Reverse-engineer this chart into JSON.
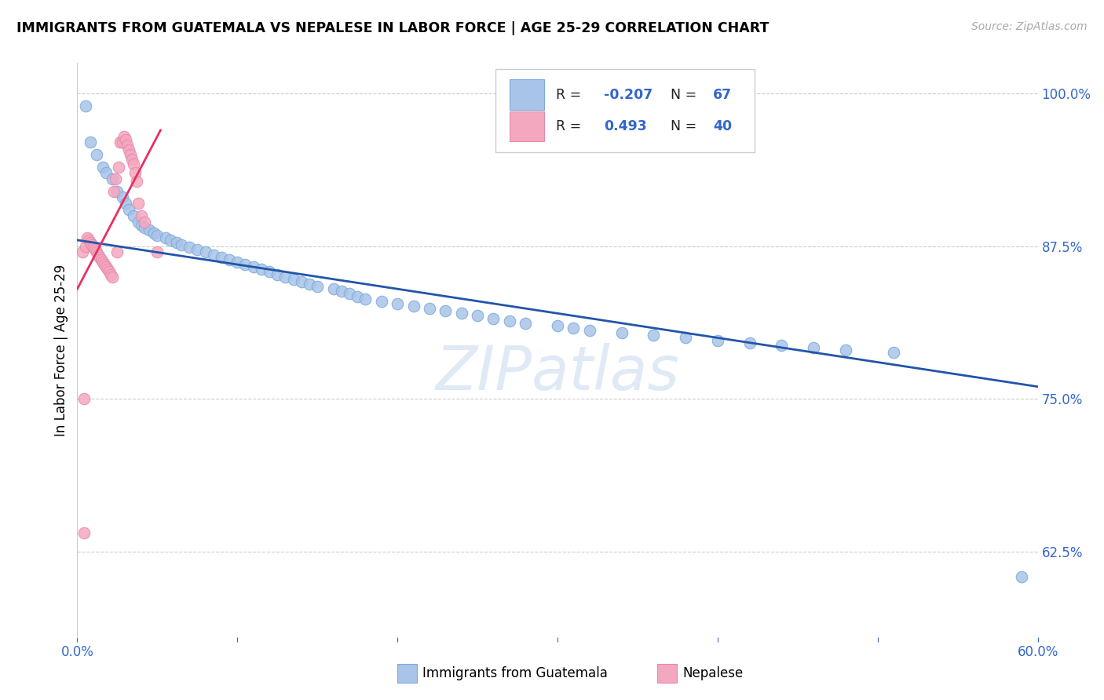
{
  "title": "IMMIGRANTS FROM GUATEMALA VS NEPALESE IN LABOR FORCE | AGE 25-29 CORRELATION CHART",
  "source": "Source: ZipAtlas.com",
  "ylabel": "In Labor Force | Age 25-29",
  "x_min": 0.0,
  "x_max": 0.6,
  "y_min": 0.555,
  "y_max": 1.025,
  "y_ticks_right": [
    0.625,
    0.75,
    0.875,
    1.0
  ],
  "y_tick_labels_right": [
    "62.5%",
    "75.0%",
    "87.5%",
    "100.0%"
  ],
  "blue_color": "#a8c4e8",
  "pink_color": "#f4a8bf",
  "blue_line_color": "#2255aa",
  "pink_line_color": "#e83060",
  "watermark": "ZIPatlas",
  "blue_scatter_x": [
    0.005,
    0.008,
    0.012,
    0.016,
    0.018,
    0.022,
    0.025,
    0.028,
    0.03,
    0.032,
    0.035,
    0.038,
    0.04,
    0.042,
    0.045,
    0.048,
    0.05,
    0.055,
    0.058,
    0.062,
    0.065,
    0.07,
    0.075,
    0.08,
    0.085,
    0.09,
    0.095,
    0.1,
    0.105,
    0.11,
    0.115,
    0.12,
    0.125,
    0.13,
    0.135,
    0.14,
    0.145,
    0.15,
    0.16,
    0.165,
    0.17,
    0.175,
    0.18,
    0.19,
    0.2,
    0.21,
    0.22,
    0.23,
    0.24,
    0.25,
    0.26,
    0.27,
    0.28,
    0.3,
    0.31,
    0.32,
    0.34,
    0.36,
    0.38,
    0.4,
    0.42,
    0.44,
    0.46,
    0.48,
    0.51,
    0.59
  ],
  "blue_scatter_y": [
    0.99,
    0.96,
    0.95,
    0.94,
    0.935,
    0.93,
    0.92,
    0.915,
    0.91,
    0.905,
    0.9,
    0.895,
    0.892,
    0.89,
    0.888,
    0.886,
    0.884,
    0.882,
    0.88,
    0.878,
    0.876,
    0.874,
    0.872,
    0.87,
    0.868,
    0.866,
    0.864,
    0.862,
    0.86,
    0.858,
    0.856,
    0.854,
    0.852,
    0.85,
    0.848,
    0.846,
    0.844,
    0.842,
    0.84,
    0.838,
    0.836,
    0.834,
    0.832,
    0.83,
    0.828,
    0.826,
    0.824,
    0.822,
    0.82,
    0.818,
    0.816,
    0.814,
    0.812,
    0.81,
    0.808,
    0.806,
    0.804,
    0.802,
    0.8,
    0.798,
    0.796,
    0.794,
    0.792,
    0.79,
    0.788,
    0.604
  ],
  "pink_scatter_x": [
    0.003,
    0.004,
    0.005,
    0.006,
    0.007,
    0.008,
    0.009,
    0.01,
    0.011,
    0.012,
    0.013,
    0.014,
    0.015,
    0.016,
    0.017,
    0.018,
    0.019,
    0.02,
    0.021,
    0.022,
    0.023,
    0.024,
    0.025,
    0.026,
    0.027,
    0.028,
    0.029,
    0.03,
    0.031,
    0.032,
    0.033,
    0.034,
    0.035,
    0.036,
    0.037,
    0.038,
    0.04,
    0.042,
    0.05,
    0.004
  ],
  "pink_scatter_y": [
    0.87,
    0.64,
    0.875,
    0.882,
    0.88,
    0.878,
    0.876,
    0.874,
    0.872,
    0.87,
    0.868,
    0.866,
    0.864,
    0.862,
    0.86,
    0.858,
    0.856,
    0.854,
    0.852,
    0.85,
    0.92,
    0.93,
    0.87,
    0.94,
    0.96,
    0.96,
    0.965,
    0.962,
    0.958,
    0.954,
    0.95,
    0.946,
    0.942,
    0.935,
    0.928,
    0.91,
    0.9,
    0.895,
    0.87,
    0.75
  ],
  "blue_trend_x": [
    0.0,
    0.6
  ],
  "blue_trend_y": [
    0.88,
    0.76
  ],
  "pink_trend_x": [
    0.0,
    0.052
  ],
  "pink_trend_y": [
    0.84,
    0.97
  ]
}
